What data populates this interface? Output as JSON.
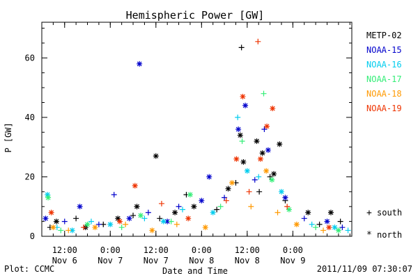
{
  "chart_data": {
    "type": "scatter",
    "title": "Hemispheric Power [GW]",
    "ylabel": "P [GW]",
    "xlabel": "Date and Time",
    "ylim": [
      0,
      72
    ],
    "yticks": [
      0,
      20,
      40,
      60
    ],
    "xlim": [
      "2011-11-06 06:00",
      "2011-11-09 15:30"
    ],
    "xticks": [
      {
        "time": "2011-11-06 12:00",
        "line1": "12:00",
        "line2": "Nov 6"
      },
      {
        "time": "2011-11-07 00:00",
        "line1": "0:00",
        "line2": "Nov 7"
      },
      {
        "time": "2011-11-07 12:00",
        "line1": "12:00",
        "line2": "Nov 7"
      },
      {
        "time": "2011-11-08 00:00",
        "line1": "0:00",
        "line2": "Nov 8"
      },
      {
        "time": "2011-11-08 12:00",
        "line1": "12:00",
        "line2": "Nov 8"
      },
      {
        "time": "2011-11-09 00:00",
        "line1": "0:00",
        "line2": "Nov 9"
      }
    ],
    "marker_legend": {
      "south": {
        "symbol": "+",
        "label": "south"
      },
      "north": {
        "symbol": "*",
        "label": "north"
      }
    },
    "series": [
      {
        "name": "METP-02",
        "color": "#000000",
        "points": [
          {
            "t": "2011-11-06 08:10",
            "v": 3,
            "h": "S"
          },
          {
            "t": "2011-11-06 09:50",
            "v": 5,
            "h": "N"
          },
          {
            "t": "2011-11-06 15:00",
            "v": 6,
            "h": "S"
          },
          {
            "t": "2011-11-06 17:30",
            "v": 3,
            "h": "N"
          },
          {
            "t": "2011-11-06 22:10",
            "v": 4,
            "h": "S"
          },
          {
            "t": "2011-11-07 02:00",
            "v": 6,
            "h": "N"
          },
          {
            "t": "2011-11-07 06:00",
            "v": 7,
            "h": "S"
          },
          {
            "t": "2011-11-07 07:00",
            "v": 10,
            "h": "N"
          },
          {
            "t": "2011-11-07 12:00",
            "v": 27,
            "h": "N"
          },
          {
            "t": "2011-11-07 13:00",
            "v": 6,
            "h": "S"
          },
          {
            "t": "2011-11-07 17:00",
            "v": 8,
            "h": "N"
          },
          {
            "t": "2011-11-07 20:00",
            "v": 14,
            "h": "S"
          },
          {
            "t": "2011-11-07 22:00",
            "v": 10,
            "h": "N"
          },
          {
            "t": "2011-11-08 04:00",
            "v": 9,
            "h": "S"
          },
          {
            "t": "2011-11-08 07:00",
            "v": 16,
            "h": "N"
          },
          {
            "t": "2011-11-08 09:00",
            "v": 18,
            "h": "S"
          },
          {
            "t": "2011-11-08 10:10",
            "v": 34,
            "h": "N"
          },
          {
            "t": "2011-11-08 11:00",
            "v": 25,
            "h": "N"
          },
          {
            "t": "2011-11-08 10:30",
            "v": 63.5,
            "h": "S"
          },
          {
            "t": "2011-11-08 14:30",
            "v": 32,
            "h": "N"
          },
          {
            "t": "2011-11-08 15:10",
            "v": 15,
            "h": "S"
          },
          {
            "t": "2011-11-08 16:00",
            "v": 28,
            "h": "N"
          },
          {
            "t": "2011-11-08 18:00",
            "v": 20,
            "h": "S"
          },
          {
            "t": "2011-11-08 19:00",
            "v": 21,
            "h": "N"
          },
          {
            "t": "2011-11-08 20:30",
            "v": 31,
            "h": "N"
          },
          {
            "t": "2011-11-08 22:00",
            "v": 12,
            "h": "S"
          },
          {
            "t": "2011-11-09 04:00",
            "v": 8,
            "h": "N"
          },
          {
            "t": "2011-11-09 07:00",
            "v": 4,
            "h": "S"
          },
          {
            "t": "2011-11-09 10:00",
            "v": 8,
            "h": "N"
          },
          {
            "t": "2011-11-09 12:30",
            "v": 5,
            "h": "S"
          }
        ]
      },
      {
        "name": "NOAA-15",
        "color": "#0000cc",
        "points": [
          {
            "t": "2011-11-06 07:00",
            "v": 6,
            "h": "N"
          },
          {
            "t": "2011-11-06 12:00",
            "v": 5,
            "h": "S"
          },
          {
            "t": "2011-11-06 16:00",
            "v": 10,
            "h": "N"
          },
          {
            "t": "2011-11-06 21:00",
            "v": 4,
            "h": "S"
          },
          {
            "t": "2011-11-07 01:00",
            "v": 14,
            "h": "S"
          },
          {
            "t": "2011-11-07 05:00",
            "v": 6,
            "h": "N"
          },
          {
            "t": "2011-11-07 07:40",
            "v": 58,
            "h": "N"
          },
          {
            "t": "2011-11-07 10:00",
            "v": 8,
            "h": "S"
          },
          {
            "t": "2011-11-07 15:00",
            "v": 5,
            "h": "N"
          },
          {
            "t": "2011-11-07 18:00",
            "v": 10,
            "h": "S"
          },
          {
            "t": "2011-11-08 00:00",
            "v": 12,
            "h": "N"
          },
          {
            "t": "2011-11-08 02:00",
            "v": 20,
            "h": "N"
          },
          {
            "t": "2011-11-08 06:00",
            "v": 13,
            "h": "S"
          },
          {
            "t": "2011-11-08 09:40",
            "v": 36,
            "h": "N"
          },
          {
            "t": "2011-11-08 11:30",
            "v": 44,
            "h": "N"
          },
          {
            "t": "2011-11-08 14:00",
            "v": 19,
            "h": "S"
          },
          {
            "t": "2011-11-08 16:30",
            "v": 36,
            "h": "S"
          },
          {
            "t": "2011-11-08 17:30",
            "v": 29,
            "h": "N"
          },
          {
            "t": "2011-11-08 22:00",
            "v": 13,
            "h": "N"
          },
          {
            "t": "2011-11-09 03:00",
            "v": 6,
            "h": "S"
          },
          {
            "t": "2011-11-09 09:00",
            "v": 5,
            "h": "N"
          },
          {
            "t": "2011-11-09 13:00",
            "v": 3,
            "h": "S"
          }
        ]
      },
      {
        "name": "NOAA-16",
        "color": "#00ccee",
        "points": [
          {
            "t": "2011-11-06 07:30",
            "v": 14,
            "h": "N"
          },
          {
            "t": "2011-11-06 10:00",
            "v": 3,
            "h": "S"
          },
          {
            "t": "2011-11-06 14:00",
            "v": 2,
            "h": "N"
          },
          {
            "t": "2011-11-06 19:00",
            "v": 5,
            "h": "S"
          },
          {
            "t": "2011-11-07 00:00",
            "v": 4,
            "h": "N"
          },
          {
            "t": "2011-11-07 09:00",
            "v": 6,
            "h": "S"
          },
          {
            "t": "2011-11-07 14:00",
            "v": 5,
            "h": "N"
          },
          {
            "t": "2011-11-07 19:00",
            "v": 9,
            "h": "S"
          },
          {
            "t": "2011-11-08 03:00",
            "v": 8,
            "h": "N"
          },
          {
            "t": "2011-11-08 09:30",
            "v": 40,
            "h": "S"
          },
          {
            "t": "2011-11-08 12:00",
            "v": 22,
            "h": "N"
          },
          {
            "t": "2011-11-08 15:00",
            "v": 20,
            "h": "S"
          },
          {
            "t": "2011-11-08 21:00",
            "v": 15,
            "h": "N"
          },
          {
            "t": "2011-11-09 05:00",
            "v": 4,
            "h": "S"
          },
          {
            "t": "2011-11-09 11:00",
            "v": 3,
            "h": "N"
          },
          {
            "t": "2011-11-09 14:30",
            "v": 2,
            "h": "S"
          }
        ]
      },
      {
        "name": "NOAA-17",
        "color": "#33ee77",
        "points": [
          {
            "t": "2011-11-06 07:40",
            "v": 13,
            "h": "N"
          },
          {
            "t": "2011-11-06 11:00",
            "v": 2,
            "h": "S"
          },
          {
            "t": "2011-11-06 18:00",
            "v": 4,
            "h": "N"
          },
          {
            "t": "2011-11-07 03:00",
            "v": 3,
            "h": "S"
          },
          {
            "t": "2011-11-07 08:00",
            "v": 7,
            "h": "N"
          },
          {
            "t": "2011-11-07 16:00",
            "v": 5,
            "h": "S"
          },
          {
            "t": "2011-11-07 21:00",
            "v": 14,
            "h": "N"
          },
          {
            "t": "2011-11-08 05:00",
            "v": 10,
            "h": "S"
          },
          {
            "t": "2011-11-08 10:40",
            "v": 32,
            "h": "S"
          },
          {
            "t": "2011-11-08 16:20",
            "v": 48,
            "h": "S"
          },
          {
            "t": "2011-11-08 18:30",
            "v": 19,
            "h": "N"
          },
          {
            "t": "2011-11-08 23:00",
            "v": 9,
            "h": "N"
          },
          {
            "t": "2011-11-09 06:00",
            "v": 3,
            "h": "S"
          },
          {
            "t": "2011-11-09 12:00",
            "v": 2,
            "h": "N"
          }
        ]
      },
      {
        "name": "NOAA-18",
        "color": "#ff9900",
        "points": [
          {
            "t": "2011-11-06 09:00",
            "v": 3,
            "h": "N"
          },
          {
            "t": "2011-11-06 13:00",
            "v": 2,
            "h": "S"
          },
          {
            "t": "2011-11-06 20:00",
            "v": 3,
            "h": "N"
          },
          {
            "t": "2011-11-07 04:00",
            "v": 4,
            "h": "S"
          },
          {
            "t": "2011-11-07 11:00",
            "v": 2,
            "h": "N"
          },
          {
            "t": "2011-11-07 17:30",
            "v": 4,
            "h": "S"
          },
          {
            "t": "2011-11-08 01:00",
            "v": 3,
            "h": "N"
          },
          {
            "t": "2011-11-08 08:00",
            "v": 18,
            "h": "N"
          },
          {
            "t": "2011-11-08 13:00",
            "v": 10,
            "h": "S"
          },
          {
            "t": "2011-11-08 17:00",
            "v": 22,
            "h": "N"
          },
          {
            "t": "2011-11-08 20:00",
            "v": 8,
            "h": "S"
          },
          {
            "t": "2011-11-09 01:00",
            "v": 4,
            "h": "N"
          },
          {
            "t": "2011-11-09 08:00",
            "v": 2,
            "h": "S"
          }
        ]
      },
      {
        "name": "NOAA-19",
        "color": "#ee3300",
        "points": [
          {
            "t": "2011-11-06 08:30",
            "v": 8,
            "h": "N"
          },
          {
            "t": "2011-11-06 17:00",
            "v": 3,
            "h": "S"
          },
          {
            "t": "2011-11-07 02:30",
            "v": 5,
            "h": "N"
          },
          {
            "t": "2011-11-07 06:30",
            "v": 17,
            "h": "N"
          },
          {
            "t": "2011-11-07 13:30",
            "v": 11,
            "h": "S"
          },
          {
            "t": "2011-11-07 20:30",
            "v": 6,
            "h": "N"
          },
          {
            "t": "2011-11-08 06:30",
            "v": 12,
            "h": "S"
          },
          {
            "t": "2011-11-08 09:10",
            "v": 26,
            "h": "N"
          },
          {
            "t": "2011-11-08 10:50",
            "v": 47,
            "h": "N"
          },
          {
            "t": "2011-11-08 12:30",
            "v": 15,
            "h": "S"
          },
          {
            "t": "2011-11-08 14:50",
            "v": 65.5,
            "h": "S"
          },
          {
            "t": "2011-11-08 15:30",
            "v": 26,
            "h": "N"
          },
          {
            "t": "2011-11-08 17:10",
            "v": 37,
            "h": "N"
          },
          {
            "t": "2011-11-08 18:40",
            "v": 43,
            "h": "N"
          },
          {
            "t": "2011-11-08 22:30",
            "v": 10,
            "h": "S"
          },
          {
            "t": "2011-11-09 09:30",
            "v": 3,
            "h": "N"
          }
        ]
      }
    ]
  },
  "footer": {
    "plot_credit": "Plot: CCMC",
    "timestamp": "2011/11/09 07:30:07"
  }
}
